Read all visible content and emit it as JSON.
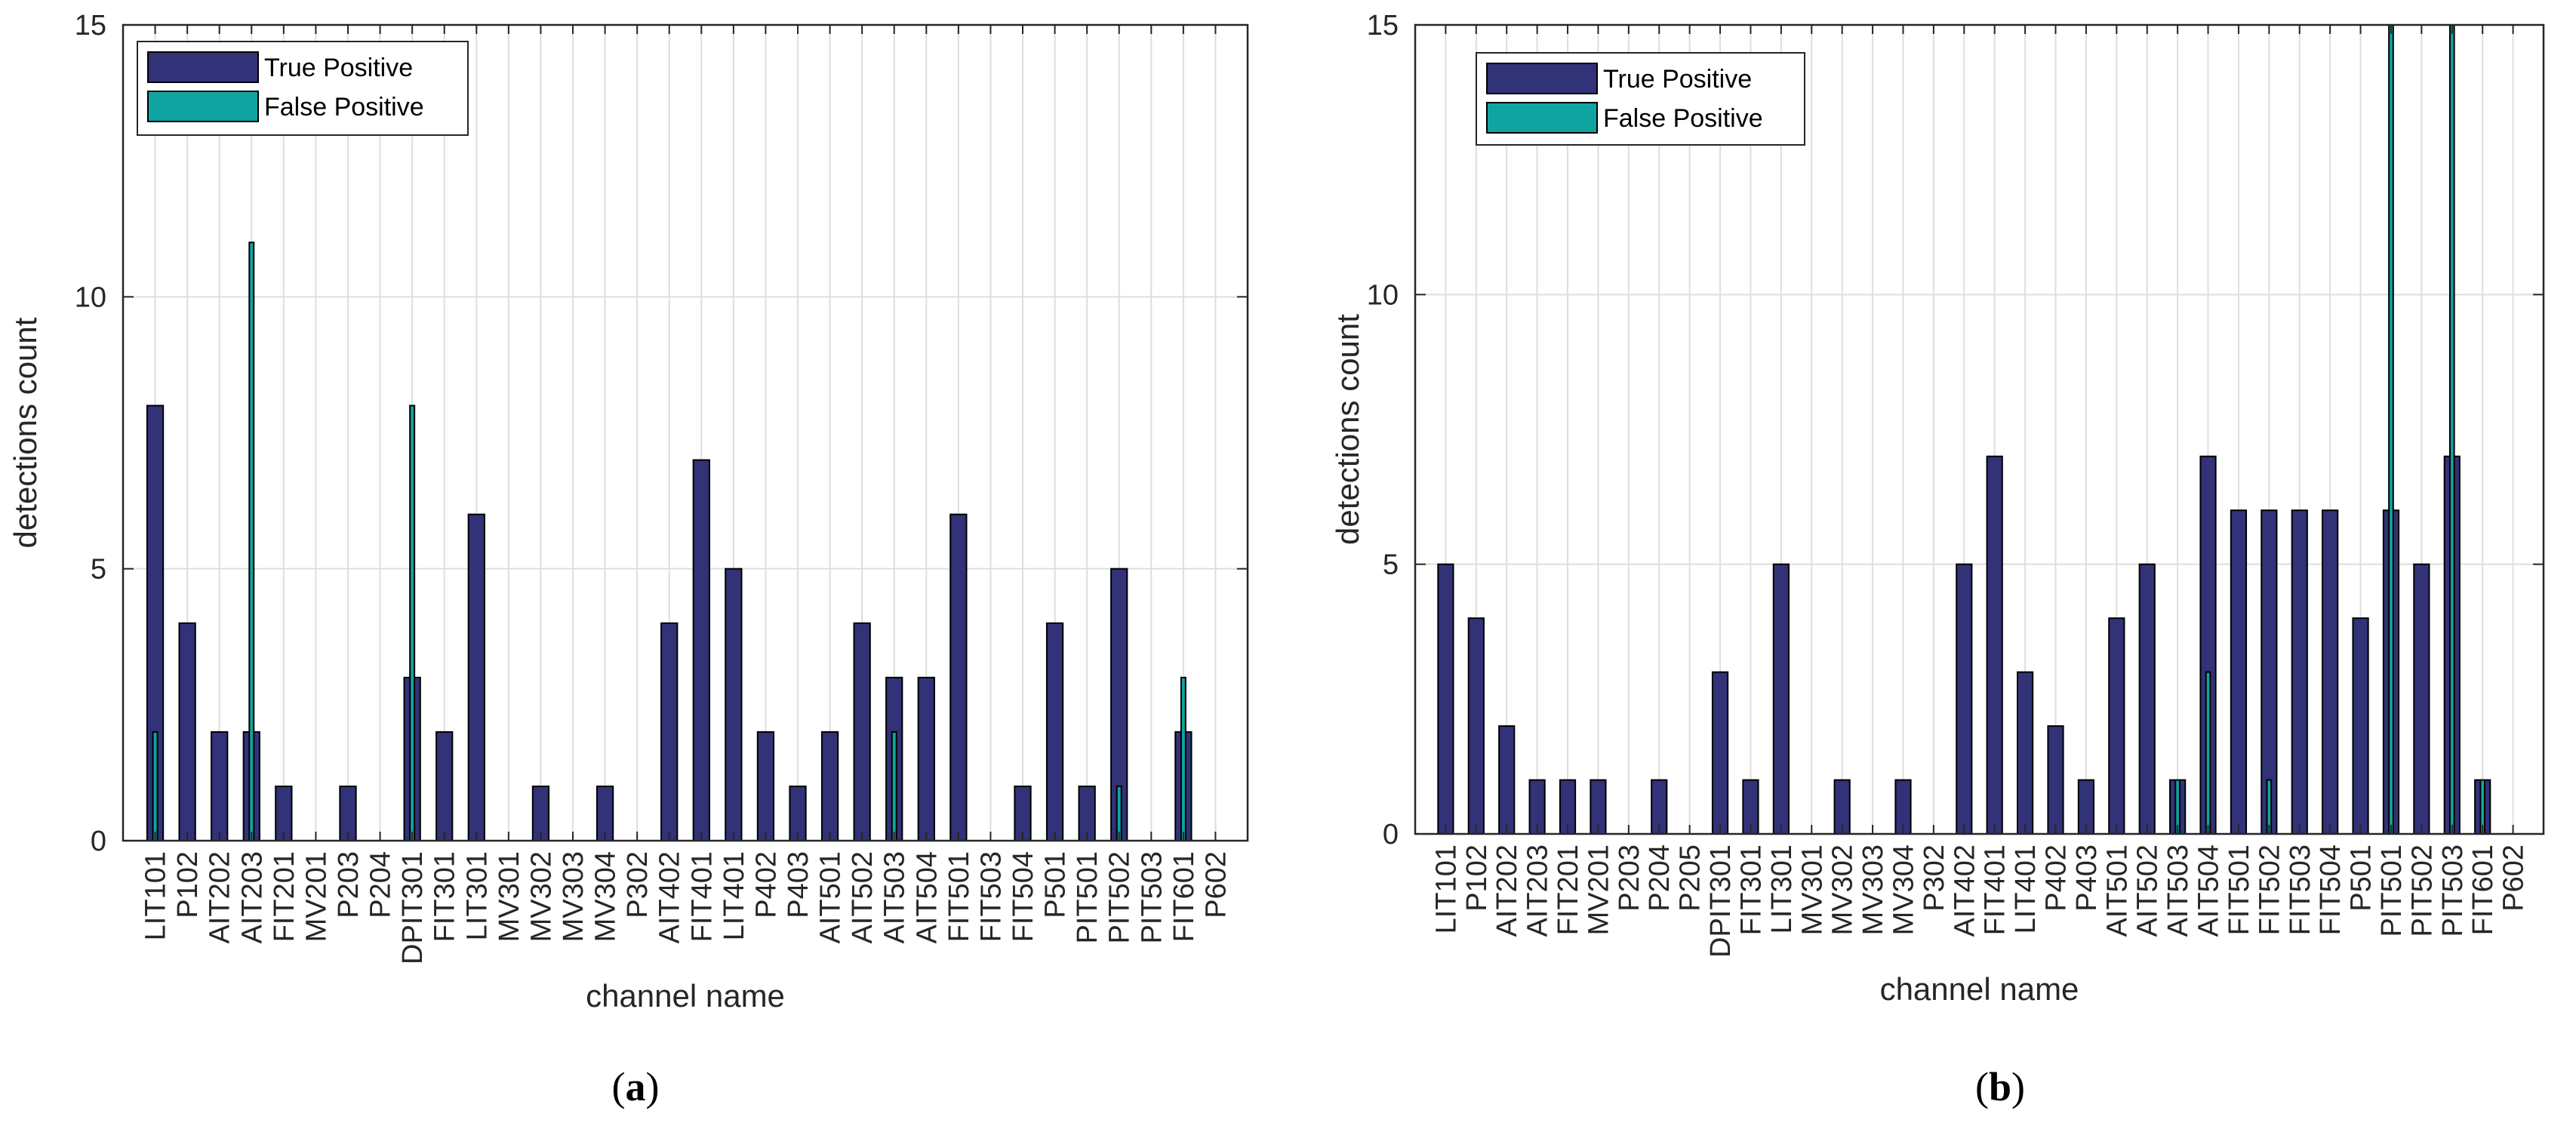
{
  "colors": {
    "true_positive": "#323278",
    "false_positive": "#10a4a0",
    "grid": "#dedede",
    "axis": "#262626"
  },
  "chart_data": [
    {
      "type": "bar",
      "panel_label": "(a)",
      "xlabel": "channel name",
      "ylabel": "detections count",
      "ylim": [
        0,
        15
      ],
      "yticks": [
        "0",
        "5",
        "10",
        "15"
      ],
      "legend": [
        "True Positive",
        "False Positive"
      ],
      "legend_position": "top-left",
      "categories": [
        "LIT101",
        "P102",
        "AIT202",
        "AIT203",
        "FIT201",
        "MV201",
        "P203",
        "P204",
        "DPIT301",
        "FIT301",
        "LIT301",
        "MV301",
        "MV302",
        "MV303",
        "MV304",
        "P302",
        "AIT402",
        "FIT401",
        "LIT401",
        "P402",
        "P403",
        "AIT501",
        "AIT502",
        "AIT503",
        "AIT504",
        "FIT501",
        "FIT503",
        "FIT504",
        "P501",
        "PIT501",
        "PIT502",
        "PIT503",
        "FIT601",
        "P602"
      ],
      "series": [
        {
          "name": "True Positive",
          "values": [
            8,
            4,
            2,
            2,
            1,
            0,
            1,
            0,
            3,
            2,
            6,
            0,
            1,
            0,
            1,
            0,
            4,
            7,
            5,
            2,
            1,
            2,
            4,
            3,
            3,
            6,
            0,
            1,
            4,
            1,
            5,
            0,
            2,
            0
          ]
        },
        {
          "name": "False Positive",
          "values": [
            2,
            0,
            0,
            11,
            0,
            0,
            0,
            0,
            8,
            0,
            0,
            0,
            0,
            0,
            0,
            0,
            0,
            0,
            0,
            0,
            0,
            0,
            0,
            2,
            0,
            0,
            0,
            0,
            0,
            0,
            1,
            0,
            3,
            0
          ]
        }
      ]
    },
    {
      "type": "bar",
      "panel_label": "(b)",
      "xlabel": "channel name",
      "ylabel": "detections count",
      "ylim": [
        0,
        15
      ],
      "yticks": [
        "0",
        "5",
        "10",
        "15"
      ],
      "legend": [
        "True Positive",
        "False Positive"
      ],
      "legend_position": "top-left",
      "categories": [
        "LIT101",
        "P102",
        "AIT202",
        "AIT203",
        "FIT201",
        "MV201",
        "P203",
        "P204",
        "P205",
        "DPIT301",
        "FIT301",
        "LIT301",
        "MV301",
        "MV302",
        "MV303",
        "MV304",
        "P302",
        "AIT402",
        "FIT401",
        "LIT401",
        "P402",
        "P403",
        "AIT501",
        "AIT502",
        "AIT503",
        "AIT504",
        "FIT501",
        "FIT502",
        "FIT503",
        "FIT504",
        "P501",
        "PIT501",
        "PIT502",
        "PIT503",
        "FIT601",
        "P602"
      ],
      "series": [
        {
          "name": "True Positive",
          "values": [
            5,
            4,
            2,
            1,
            1,
            1,
            0,
            1,
            0,
            3,
            1,
            5,
            0,
            1,
            0,
            1,
            0,
            5,
            7,
            3,
            2,
            1,
            4,
            5,
            1,
            7,
            6,
            6,
            6,
            6,
            4,
            6,
            5,
            7,
            1,
            0
          ]
        },
        {
          "name": "False Positive",
          "values": [
            0,
            0,
            0,
            0,
            0,
            0,
            0,
            0,
            0,
            0,
            0,
            0,
            0,
            0,
            0,
            0,
            0,
            0,
            0,
            0,
            0,
            0,
            0,
            0,
            1,
            3,
            0,
            1,
            0,
            0,
            0,
            15,
            0,
            15,
            1,
            0
          ]
        }
      ]
    }
  ]
}
